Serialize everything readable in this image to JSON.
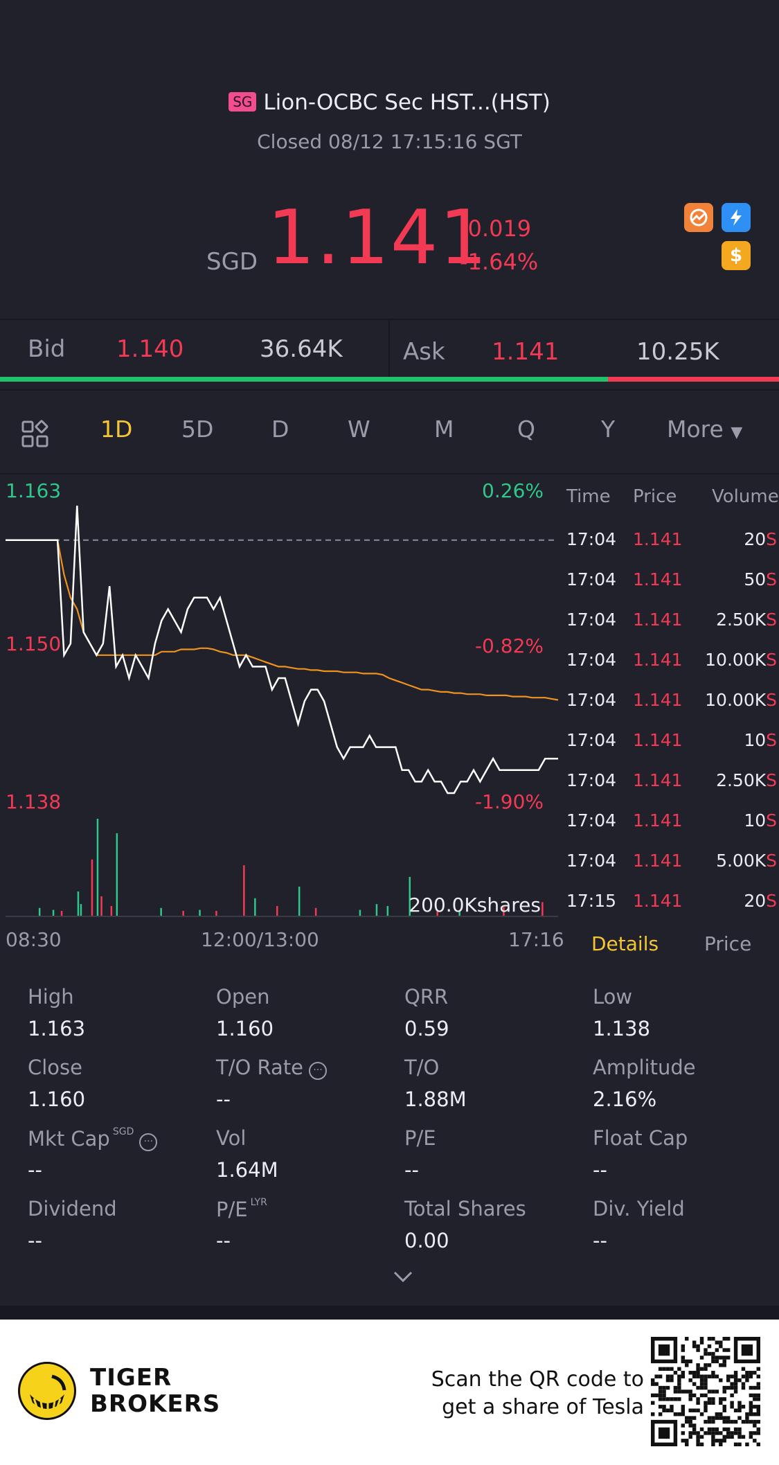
{
  "header": {
    "market_badge": "SG",
    "title": "Lion-OCBC Sec HST...(HST)",
    "status": "Closed 08/12 17:15:16 SGT"
  },
  "quote": {
    "currency": "SGD",
    "price": "1.141",
    "change": "-0.019",
    "change_pct": "-1.64%"
  },
  "bid_ask": {
    "bid_label": "Bid",
    "bid_price": "1.140",
    "bid_volume": "36.64K",
    "ask_label": "Ask",
    "ask_price": "1.141",
    "ask_volume": "10.25K",
    "bid_ratio": 0.78
  },
  "tabs": [
    "1D",
    "5D",
    "D",
    "W",
    "M",
    "Q",
    "Y"
  ],
  "active_tab": "1D",
  "more_label": "More",
  "chart_data": {
    "type": "line",
    "y_high_label": "1.163",
    "y_mid_label": "1.150",
    "y_low_label": "1.138",
    "pct_high": "0.26%",
    "pct_mid": "-0.82%",
    "pct_low": "-1.90%",
    "ylim": [
      1.138,
      1.163
    ],
    "prev_close": 1.16,
    "volume_label": "200.0Kshares",
    "x_labels": [
      "08:30",
      "12:00/13:00",
      "17:16"
    ],
    "series": [
      {
        "values": [
          1.16,
          1.16,
          1.16,
          1.16,
          1.16,
          1.16,
          1.16,
          1.16,
          1.16,
          1.15,
          1.151,
          1.163,
          1.152,
          1.151,
          1.15,
          1.151,
          1.156,
          1.149,
          1.15,
          1.148,
          1.15,
          1.149,
          1.148,
          1.151,
          1.153,
          1.154,
          1.153,
          1.152,
          1.154,
          1.155,
          1.155,
          1.155,
          1.154,
          1.155,
          1.153,
          1.151,
          1.149,
          1.15,
          1.149,
          1.149,
          1.149,
          1.147,
          1.148,
          1.148,
          1.146,
          1.144,
          1.146,
          1.147,
          1.147,
          1.146,
          1.144,
          1.142,
          1.141,
          1.142,
          1.142,
          1.142,
          1.143,
          1.142,
          1.142,
          1.142,
          1.142,
          1.14,
          1.14,
          1.139,
          1.139,
          1.14,
          1.139,
          1.139,
          1.138,
          1.138,
          1.139,
          1.139,
          1.14,
          1.139,
          1.14,
          1.141,
          1.14,
          1.14,
          1.14,
          1.14,
          1.14,
          1.14,
          1.14,
          1.141,
          1.141,
          1.141
        ]
      },
      {
        "values": [
          1.16,
          1.16,
          1.16,
          1.16,
          1.16,
          1.16,
          1.16,
          1.16,
          1.16,
          1.157,
          1.155,
          1.154,
          1.152,
          1.151,
          1.15,
          1.15,
          1.15,
          1.15,
          1.15,
          1.15,
          1.15,
          1.15,
          1.15,
          1.15,
          1.1503,
          1.1503,
          1.1503,
          1.1505,
          1.1505,
          1.1505,
          1.1506,
          1.1506,
          1.1505,
          1.1503,
          1.1502,
          1.15,
          1.15,
          1.15,
          1.1498,
          1.1496,
          1.1494,
          1.1492,
          1.149,
          1.149,
          1.1489,
          1.1488,
          1.1488,
          1.1487,
          1.1487,
          1.1486,
          1.1486,
          1.1486,
          1.1485,
          1.1485,
          1.1485,
          1.1484,
          1.1484,
          1.1484,
          1.1483,
          1.148,
          1.1478,
          1.1476,
          1.1474,
          1.1472,
          1.147,
          1.147,
          1.1469,
          1.1468,
          1.1468,
          1.1467,
          1.1467,
          1.1466,
          1.1466,
          1.1466,
          1.1465,
          1.1465,
          1.1465,
          1.1465,
          1.1464,
          1.1464,
          1.1464,
          1.1463,
          1.1463,
          1.1463,
          1.1462,
          1.1461
        ]
      }
    ],
    "volume_bars": [
      {
        "x": 0.06,
        "v": 8,
        "c": "g"
      },
      {
        "x": 0.085,
        "v": 6,
        "c": "g"
      },
      {
        "x": 0.1,
        "v": 5,
        "c": "r"
      },
      {
        "x": 0.13,
        "v": 25,
        "c": "g"
      },
      {
        "x": 0.135,
        "v": 12,
        "c": "g"
      },
      {
        "x": 0.155,
        "v": 58,
        "c": "r"
      },
      {
        "x": 0.165,
        "v": 100,
        "c": "g"
      },
      {
        "x": 0.172,
        "v": 20,
        "c": "r"
      },
      {
        "x": 0.19,
        "v": 10,
        "c": "r"
      },
      {
        "x": 0.2,
        "v": 85,
        "c": "g"
      },
      {
        "x": 0.28,
        "v": 8,
        "c": "g"
      },
      {
        "x": 0.32,
        "v": 5,
        "c": "r"
      },
      {
        "x": 0.35,
        "v": 6,
        "c": "g"
      },
      {
        "x": 0.38,
        "v": 5,
        "c": "r"
      },
      {
        "x": 0.43,
        "v": 52,
        "c": "r"
      },
      {
        "x": 0.45,
        "v": 18,
        "c": "g"
      },
      {
        "x": 0.49,
        "v": 10,
        "c": "r"
      },
      {
        "x": 0.53,
        "v": 30,
        "c": "g"
      },
      {
        "x": 0.56,
        "v": 8,
        "c": "r"
      },
      {
        "x": 0.64,
        "v": 6,
        "c": "g"
      },
      {
        "x": 0.67,
        "v": 12,
        "c": "g"
      },
      {
        "x": 0.69,
        "v": 10,
        "c": "g"
      },
      {
        "x": 0.73,
        "v": 40,
        "c": "g"
      },
      {
        "x": 0.78,
        "v": 6,
        "c": "r"
      },
      {
        "x": 0.82,
        "v": 5,
        "c": "g"
      },
      {
        "x": 0.9,
        "v": 9,
        "c": "r"
      },
      {
        "x": 0.97,
        "v": 14,
        "c": "r"
      }
    ]
  },
  "tick_table": {
    "headers": [
      "Time",
      "Price",
      "Volume"
    ],
    "rows": [
      {
        "time": "17:04",
        "price": "1.141",
        "volume": "20",
        "side": "S"
      },
      {
        "time": "17:04",
        "price": "1.141",
        "volume": "50",
        "side": "S"
      },
      {
        "time": "17:04",
        "price": "1.141",
        "volume": "2.50K",
        "side": "S"
      },
      {
        "time": "17:04",
        "price": "1.141",
        "volume": "10.00K",
        "side": "S"
      },
      {
        "time": "17:04",
        "price": "1.141",
        "volume": "10.00K",
        "side": "S"
      },
      {
        "time": "17:04",
        "price": "1.141",
        "volume": "10",
        "side": "S"
      },
      {
        "time": "17:04",
        "price": "1.141",
        "volume": "2.50K",
        "side": "S"
      },
      {
        "time": "17:04",
        "price": "1.141",
        "volume": "10",
        "side": "S"
      },
      {
        "time": "17:04",
        "price": "1.141",
        "volume": "5.00K",
        "side": "S"
      },
      {
        "time": "17:15",
        "price": "1.141",
        "volume": "20",
        "side": "S"
      }
    ],
    "details_tab": "Details",
    "price_tab": "Price"
  },
  "stats": {
    "high_label": "High",
    "high": "1.163",
    "open_label": "Open",
    "open": "1.160",
    "qrr_label": "QRR",
    "qrr": "0.59",
    "low_label": "Low",
    "low": "1.138",
    "close_label": "Close",
    "close": "1.160",
    "to_rate_label": "T/O Rate",
    "to_rate": "--",
    "to_label": "T/O",
    "to": "1.88M",
    "amplitude_label": "Amplitude",
    "amplitude": "2.16%",
    "mkt_cap_label": "Mkt Cap",
    "mkt_cap_sup": "SGD",
    "mkt_cap": "--",
    "vol_label": "Vol",
    "vol": "1.64M",
    "pe_label": "P/E",
    "pe": "--",
    "float_cap_label": "Float Cap",
    "float_cap": "--",
    "dividend_label": "Dividend",
    "dividend": "--",
    "pe_lyr_label": "P/E",
    "pe_lyr_sup": "LYR",
    "pe_lyr": "--",
    "total_shares_label": "Total Shares",
    "total_shares": "0.00",
    "div_yield_label": "Div. Yield",
    "div_yield": "--"
  },
  "footer": {
    "brand_line1": "TIGER",
    "brand_line2": "BROKERS",
    "scan_line1": "Scan the QR code to",
    "scan_line2": "get a share of Tesla"
  },
  "colors": {
    "up": "#2fc88a",
    "down": "#f23a55",
    "accent": "#f4c631",
    "avg_line": "#f0921e",
    "price_line": "#ffffff"
  }
}
